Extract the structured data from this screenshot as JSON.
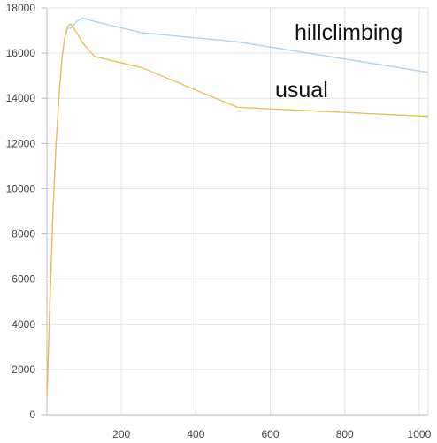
{
  "chart_data": {
    "type": "line",
    "title": "",
    "xlabel": "",
    "ylabel": "",
    "xlim": [
      0,
      1024
    ],
    "ylim": [
      0,
      18000
    ],
    "xticks": [
      200,
      400,
      600,
      800,
      1000
    ],
    "yticks": [
      0,
      2000,
      4000,
      6000,
      8000,
      10000,
      12000,
      14000,
      16000,
      18000
    ],
    "grid": true,
    "legend": "none",
    "series": [
      {
        "name": "hillclimbing",
        "color": "#a9d3ee",
        "x": [
          0,
          8,
          16,
          24,
          32,
          40,
          48,
          56,
          64,
          80,
          96,
          128,
          256,
          512,
          1024
        ],
        "y": [
          500,
          5000,
          8800,
          11800,
          14000,
          15700,
          16700,
          17100,
          17100,
          17400,
          17550,
          17400,
          16900,
          16500,
          15150
        ]
      },
      {
        "name": "usual",
        "color": "#e8bf4a",
        "x": [
          0,
          8,
          16,
          24,
          32,
          40,
          48,
          56,
          64,
          80,
          96,
          128,
          256,
          512,
          1024
        ],
        "y": [
          800,
          5000,
          8800,
          11800,
          14000,
          15700,
          16700,
          17200,
          17300,
          16900,
          16450,
          15850,
          15350,
          13600,
          13200
        ]
      }
    ]
  }
}
